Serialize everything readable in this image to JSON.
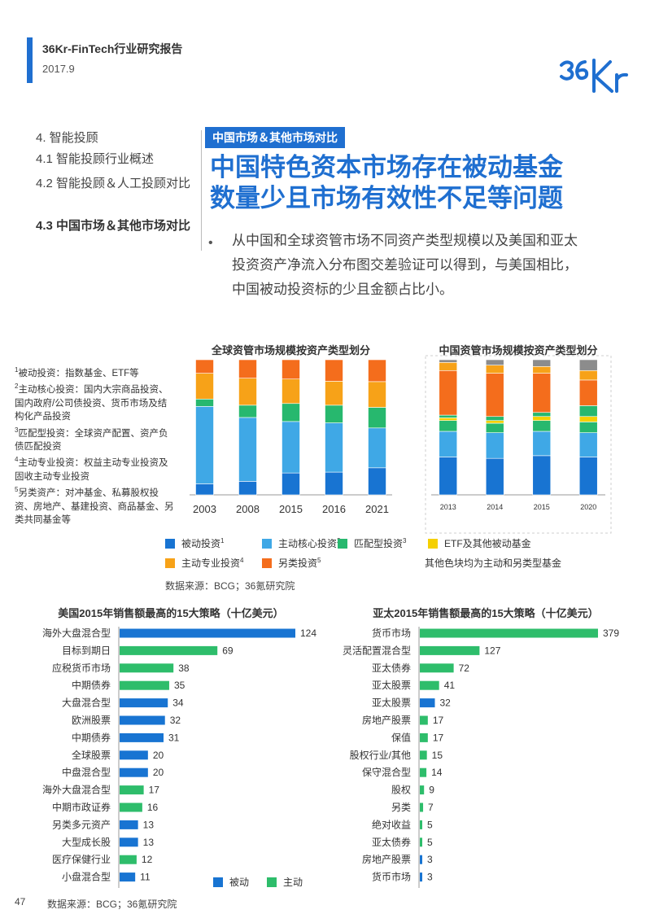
{
  "header": {
    "title": "36Kr-FinTech行业研究报告",
    "date": "2017.9",
    "logo_text": "36Kr"
  },
  "nav": [
    {
      "label": "4. 智能投顾",
      "active": false
    },
    {
      "label": "4.1 智能投顾行业概述",
      "active": false
    },
    {
      "label": "4.2 智能投顾＆人工投顾对比",
      "active": false
    },
    {
      "label": "4.3 中国市场＆其他市场对比",
      "active": true
    }
  ],
  "section_tag": "中国市场＆其他市场对比",
  "headline": [
    "中国特色资本市场存在被动基金",
    "数量少且市场有效性不足等问题"
  ],
  "bullet": "从中国和全球资管市场不同资产类型规模以及美国和亚太投资资产净流入分布图交差验证可以得到，与美国相比，中国被动投资标的少且金额占比小。",
  "notes": [
    {
      "sup": "1",
      "text": "被动投资：指数基金、ETF等"
    },
    {
      "sup": "2",
      "text": "主动核心投资：国内大宗商品投资、国内政府/公司债投资、货币市场及结构化产品投资"
    },
    {
      "sup": "3",
      "text": "匹配型投资：全球资产配置、资产负债匹配投资"
    },
    {
      "sup": "4",
      "text": "主动专业投资：权益主动专业投资及固收主动专业投资"
    },
    {
      "sup": "5",
      "text": "另类资产：对冲基金、私募股权投资、房地产、基建投资、商品基金、另类共同基金等"
    }
  ],
  "colors": {
    "passive": "#1874d2",
    "core": "#3fa8e6",
    "matching": "#27b86e",
    "etf": "#f5d000",
    "specialty": "#f7a218",
    "alternative": "#f46d1c",
    "other": "#8c8c8c",
    "bar_passive": "#1874d2",
    "bar_active": "#2ebd6b"
  },
  "legend": {
    "items": [
      {
        "key": "passive",
        "label": "被动投资",
        "sup": "1"
      },
      {
        "key": "core",
        "label": "主动核心投资",
        "sup": "2"
      },
      {
        "key": "matching",
        "label": "匹配型投资",
        "sup": "3"
      },
      {
        "key": "etf",
        "label": "ETF及其他被动基金",
        "sup": ""
      },
      {
        "key": "specialty",
        "label": "主动专业投资",
        "sup": "4"
      },
      {
        "key": "alternative",
        "label": "另类投资",
        "sup": "5"
      }
    ],
    "note": "其他色块均为主动和另类型基金",
    "bottom_passive": "被动",
    "bottom_active": "主动"
  },
  "source_top": "数据来源：BCG；36氪研究院",
  "source_bottom": "数据来源：BCG；36氪研究院",
  "page_number": "47",
  "chart_data": [
    {
      "type": "bar",
      "stacked": true,
      "percent": true,
      "title": "全球资管市场规模按资产类型划分",
      "categories": [
        "2003",
        "2008",
        "2015",
        "2016",
        "2021"
      ],
      "series": [
        {
          "name": "被动投资",
          "key": "passive",
          "values": [
            9,
            11,
            17,
            18,
            21
          ]
        },
        {
          "name": "主动核心投资",
          "key": "core",
          "values": [
            63,
            52,
            40,
            39,
            31
          ]
        },
        {
          "name": "匹配型投资",
          "key": "matching",
          "values": [
            6,
            10,
            14,
            14,
            16
          ]
        },
        {
          "name": "主动专业投资",
          "key": "specialty",
          "values": [
            21,
            22,
            19,
            19,
            20
          ]
        },
        {
          "name": "另类投资",
          "key": "alternative",
          "values": [
            11,
            15,
            15,
            17,
            17
          ]
        }
      ]
    },
    {
      "type": "bar",
      "stacked": true,
      "percent": true,
      "title": "中国资管市场规模按资产类型划分",
      "categories": [
        "2013",
        "2014",
        "2015",
        "2020"
      ],
      "series": [
        {
          "name": "被动投资",
          "key": "passive",
          "values": [
            28,
            27,
            29,
            28
          ]
        },
        {
          "name": "主动核心投资",
          "key": "core",
          "values": [
            19,
            19,
            18,
            18
          ]
        },
        {
          "name": "匹配型投资",
          "key": "matching",
          "values": [
            8,
            7,
            8,
            8
          ]
        },
        {
          "name": "ETF及其他被动基金",
          "key": "etf",
          "values": [
            2,
            2,
            3,
            4
          ]
        },
        {
          "name": "匹配型投资",
          "key": "matching",
          "values": [
            2,
            3,
            3,
            8
          ]
        },
        {
          "name": "另类投资",
          "key": "alternative",
          "values": [
            33,
            32,
            29,
            19
          ]
        },
        {
          "name": "主动专业投资",
          "key": "specialty",
          "values": [
            6,
            6,
            5,
            7
          ]
        },
        {
          "name": "其他",
          "key": "other",
          "values": [
            2,
            4,
            5,
            8
          ]
        }
      ]
    },
    {
      "type": "bar",
      "orientation": "horizontal",
      "title": "美国2015年销售额最高的15大策略（十亿美元）",
      "categories": [
        "海外大盘混合型",
        "目标到期日",
        "应税货币市场",
        "中期债券",
        "大盘混合型",
        "欧洲股票",
        "中期债券",
        "全球股票",
        "中盘混合型",
        "海外大盘混合型",
        "中期市政证券",
        "另类多元资产",
        "大型成长股",
        "医疗保健行业",
        "小盘混合型"
      ],
      "values": [
        124,
        69,
        38,
        35,
        34,
        32,
        31,
        20,
        20,
        17,
        16,
        13,
        13,
        12,
        11
      ],
      "kind": [
        "passive",
        "active",
        "active",
        "active",
        "passive",
        "passive",
        "passive",
        "passive",
        "passive",
        "active",
        "active",
        "passive",
        "passive",
        "active",
        "passive"
      ]
    },
    {
      "type": "bar",
      "orientation": "horizontal",
      "title": "亚太2015年销售额最高的15大策略（十亿美元）",
      "categories": [
        "货币市场",
        "灵活配置混合型",
        "亚太债券",
        "亚太股票",
        "亚太股票",
        "房地产股票",
        "保值",
        "股权行业/其他",
        "保守混合型",
        "股权",
        "另类",
        "绝对收益",
        "亚太债券",
        "房地产股票",
        "货币市场"
      ],
      "values": [
        379,
        127,
        72,
        41,
        32,
        17,
        17,
        15,
        14,
        9,
        7,
        5,
        5,
        3,
        3
      ],
      "kind": [
        "active",
        "active",
        "active",
        "active",
        "passive",
        "active",
        "active",
        "active",
        "active",
        "active",
        "active",
        "active",
        "active",
        "passive",
        "passive"
      ]
    }
  ]
}
